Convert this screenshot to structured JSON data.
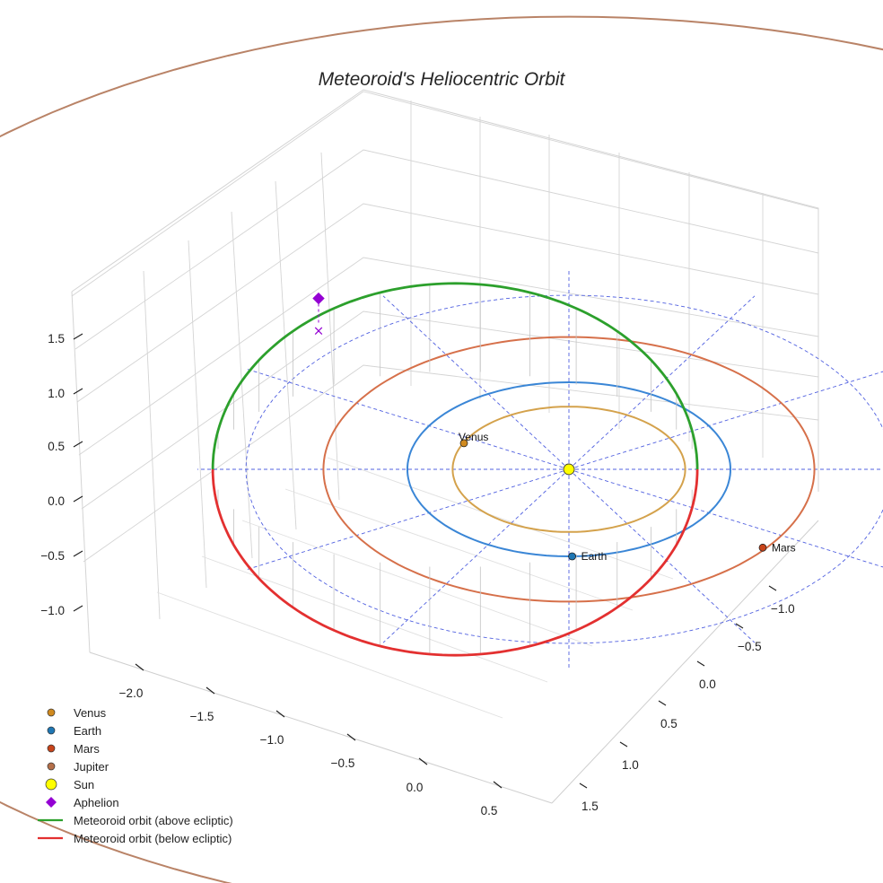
{
  "chart_data": {
    "type": "3d-line",
    "title": "Meteoroid's Heliocentric Orbit",
    "x_ticks": [
      "−2.0",
      "−1.5",
      "−1.0",
      "−0.5",
      "0.0",
      "0.5"
    ],
    "y_ticks": [
      "−1.0",
      "−0.5",
      "0.0",
      "0.5",
      "1.0",
      "1.5"
    ],
    "z_ticks": [
      "−1.0",
      "−0.5",
      "0.0",
      "0.5",
      "1.0",
      "1.5"
    ],
    "x_range": [
      -2.3,
      0.8
    ],
    "y_range": [
      -1.3,
      1.7
    ],
    "z_range": [
      -1.3,
      1.7
    ],
    "planets": [
      {
        "name": "Venus",
        "orbit_radius_au": 0.72,
        "position": [
          -0.65,
          0.3,
          0
        ],
        "color": "#d08a1f",
        "orbit_color": "#d4a24c"
      },
      {
        "name": "Earth",
        "orbit_radius_au": 1.0,
        "position": [
          0.02,
          -1.0,
          0
        ],
        "color": "#1f77b4",
        "orbit_color": "#3a86d6"
      },
      {
        "name": "Mars",
        "orbit_radius_au": 1.52,
        "position": [
          1.2,
          -0.9,
          0
        ],
        "color": "#c8441a",
        "orbit_color": "#d6704a"
      },
      {
        "name": "Jupiter",
        "orbit_radius_au": 5.2,
        "position": null,
        "color": "#b5704a",
        "orbit_color": "#b98367"
      }
    ],
    "sun": {
      "name": "Sun",
      "position": [
        0,
        0,
        0
      ],
      "color": "#ffff00"
    },
    "aphelion": {
      "name": "Aphelion",
      "position": [
        -1.55,
        0.85,
        0.9
      ],
      "color": "#9400d3"
    },
    "aphelion_projection_marker": "×",
    "meteoroid_orbit": {
      "semi_major_axis_au": 1.5,
      "eccentricity": 0.47,
      "inclination_deg": 36,
      "above_label": "Meteoroid orbit (above ecliptic)",
      "above_color": "#2ca02c",
      "below_label": "Meteoroid orbit (below ecliptic)",
      "below_color": "#e33030"
    },
    "ecliptic_grid": {
      "radius_au": 2.0,
      "spokes": 12,
      "color": "#5060e0"
    },
    "legend": [
      {
        "label": "Venus",
        "marker": "circle",
        "color": "#d08a1f"
      },
      {
        "label": "Earth",
        "marker": "circle",
        "color": "#1f77b4"
      },
      {
        "label": "Mars",
        "marker": "circle",
        "color": "#c8441a"
      },
      {
        "label": "Jupiter",
        "marker": "circle",
        "color": "#b5704a"
      },
      {
        "label": "Sun",
        "marker": "big-circle",
        "color": "#ffff00"
      },
      {
        "label": "Aphelion",
        "marker": "diamond",
        "color": "#9400d3"
      },
      {
        "label": "Meteoroid orbit (above ecliptic)",
        "marker": "line",
        "color": "#2ca02c"
      },
      {
        "label": "Meteoroid orbit (below ecliptic)",
        "marker": "line",
        "color": "#e33030"
      }
    ],
    "legend_position": "bottom-left"
  }
}
